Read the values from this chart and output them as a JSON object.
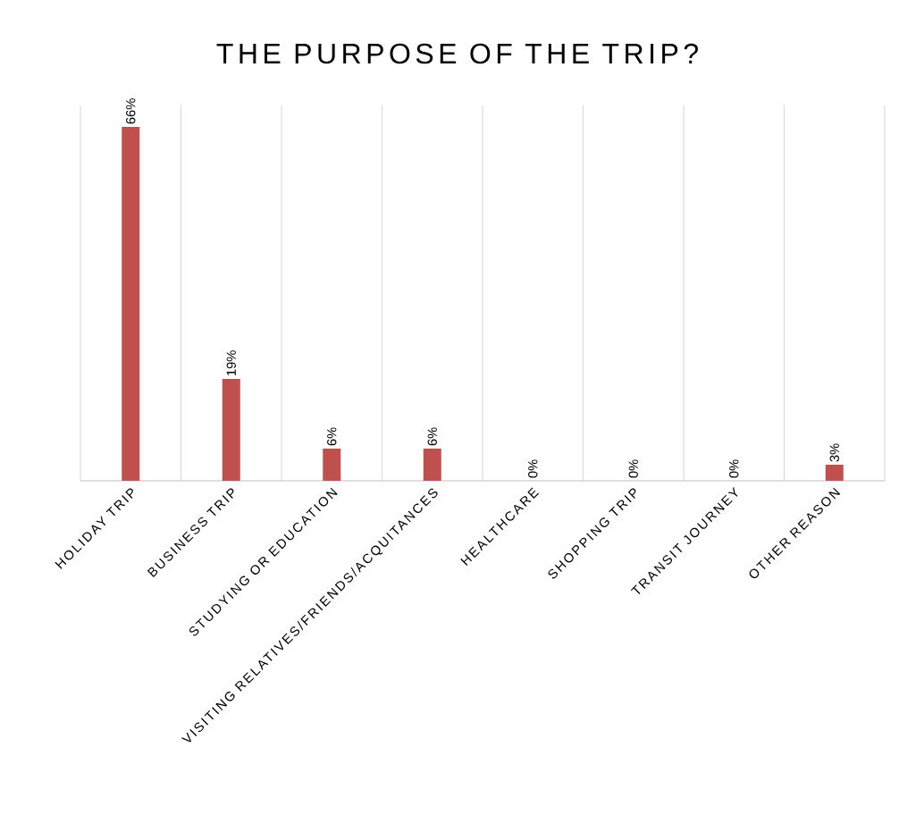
{
  "chart_data": {
    "type": "bar",
    "title": "THE PURPOSE OF THE TRIP?",
    "categories": [
      "HOLIDAY TRIP",
      "BUSINESS TRIP",
      "STUDYING OR EDUCATION",
      "VISITING RELATIVES/FRIENDS/ACQUITANCES",
      "HEALTHCARE",
      "SHOPPING TRIP",
      "TRANSIT JOURNEY",
      "OTHER REASON"
    ],
    "values": [
      66,
      19,
      6,
      6,
      0,
      0,
      0,
      3
    ],
    "value_labels": [
      "66%",
      "19%",
      "6%",
      "6%",
      "0%",
      "0%",
      "0%",
      "3%"
    ],
    "color": "#c0504d",
    "ylim": [
      0,
      70
    ],
    "grid": "x"
  }
}
